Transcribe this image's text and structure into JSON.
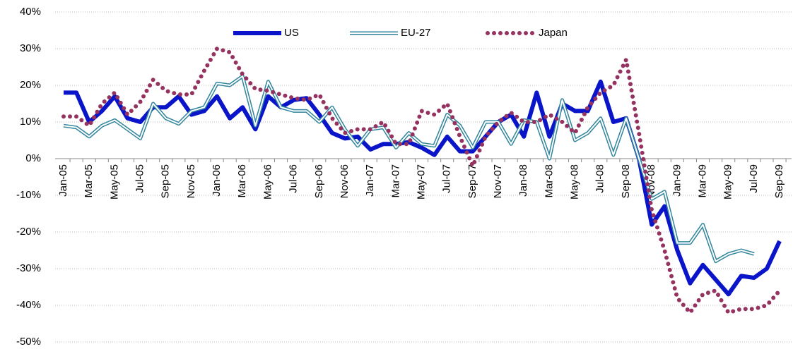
{
  "chart_data": {
    "type": "line",
    "categories": [
      "Jan-05",
      null,
      "Mar-05",
      null,
      "May-05",
      null,
      "Jul-05",
      null,
      "Sep-05",
      null,
      "Nov-05",
      null,
      "Jan-06",
      null,
      "Mar-06",
      null,
      "May-06",
      null,
      "Jul-06",
      null,
      "Sep-06",
      null,
      "Nov-06",
      null,
      "Jan-07",
      null,
      "Mar-07",
      null,
      "May-07",
      null,
      "Jul-07",
      null,
      "Sep-07",
      null,
      "Nov-07",
      null,
      "Jan-08",
      null,
      "Mar-08",
      null,
      "May-08",
      null,
      "Jul-08",
      null,
      "Sep-08",
      null,
      "Nov-08",
      null,
      "Jan-09",
      null,
      "Mar-09",
      null,
      "May-09",
      null,
      "Jul-09",
      null,
      "Sep-09"
    ],
    "series": [
      {
        "name": "US",
        "color": "#0a14c8",
        "style": "thick",
        "values": [
          18,
          18,
          10,
          13,
          17,
          11,
          10,
          14,
          14,
          17,
          12,
          13,
          17,
          11,
          14,
          8,
          17,
          14,
          16,
          16.5,
          12,
          7,
          5.5,
          6,
          2.5,
          4,
          4,
          4.5,
          3,
          1,
          6,
          2,
          2,
          6,
          10,
          12,
          6,
          18,
          6,
          15,
          13,
          13,
          21,
          10,
          11,
          0,
          -18,
          -13,
          -25,
          -34,
          -29,
          -33,
          -37,
          -32,
          -32.5,
          -30,
          -22.5
        ]
      },
      {
        "name": "EU-27",
        "color": "#31859c",
        "style": "double",
        "values": [
          9,
          8.5,
          6,
          9,
          10.5,
          8,
          5.5,
          15,
          11,
          9.5,
          13,
          14,
          20.5,
          20,
          22.5,
          9,
          21,
          14,
          13,
          13,
          10,
          14,
          8,
          3.5,
          8,
          8.5,
          3,
          7,
          4,
          3.5,
          12,
          9,
          3,
          10,
          10,
          4,
          10.5,
          10,
          0,
          16,
          5,
          7,
          11,
          1,
          11,
          0,
          -11,
          -9,
          -23,
          -23,
          -18,
          -28,
          -26,
          -25,
          -26,
          null,
          null
        ]
      },
      {
        "name": "Japan",
        "color": "#953260",
        "style": "dotted",
        "values": [
          11.5,
          11.5,
          9,
          15,
          18,
          12,
          15.5,
          21.5,
          18.5,
          17.5,
          17.5,
          24,
          30,
          29,
          23,
          19,
          18.5,
          17.5,
          16.5,
          16,
          17.5,
          11,
          7,
          8,
          8,
          10,
          4,
          4,
          13,
          12,
          15,
          6,
          -2,
          6,
          10,
          12.5,
          10,
          10,
          12,
          10,
          7,
          14,
          18,
          20,
          27,
          7,
          -14,
          -25,
          -38,
          -42,
          -37,
          -36,
          -42,
          -41,
          -41,
          -40,
          -36
        ]
      }
    ],
    "ylim": [
      -50,
      40
    ],
    "yticks": [
      {
        "value": -50,
        "label": "-50%"
      },
      {
        "value": -40,
        "label": "-40%"
      },
      {
        "value": -30,
        "label": "-30%"
      },
      {
        "value": -20,
        "label": "-20%"
      },
      {
        "value": -10,
        "label": "-10%"
      },
      {
        "value": 0,
        "label": "0%"
      },
      {
        "value": 10,
        "label": "10%"
      },
      {
        "value": 20,
        "label": "20%"
      },
      {
        "value": 30,
        "label": "30%"
      },
      {
        "value": 40,
        "label": "40%"
      }
    ],
    "grid": true,
    "legend": "top"
  }
}
